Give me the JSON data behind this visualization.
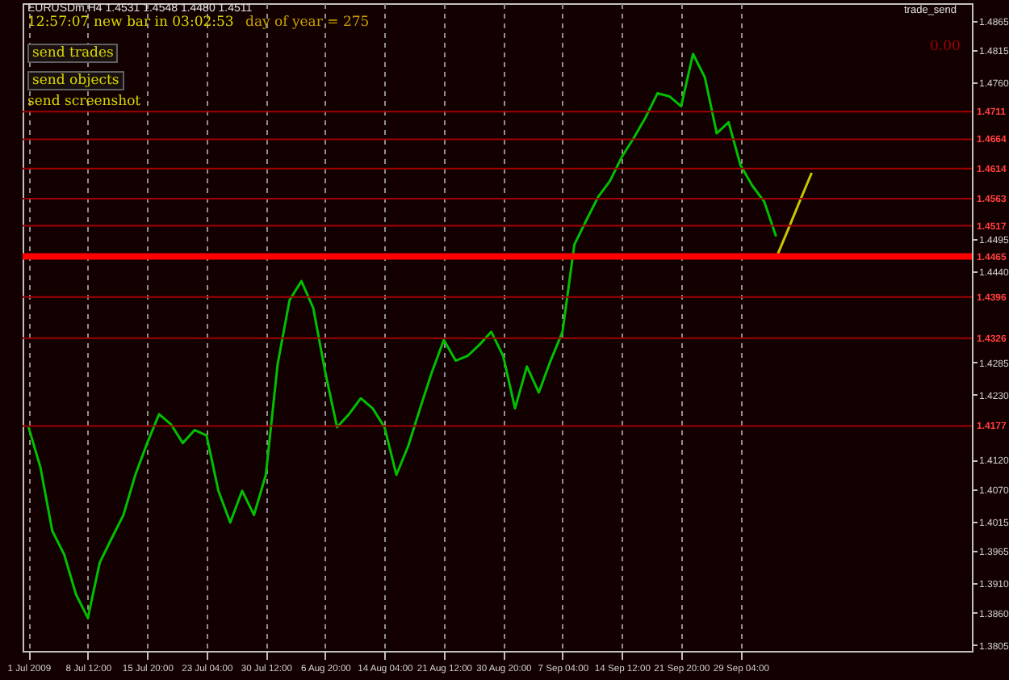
{
  "chart_data": {
    "type": "line",
    "title": "EURUSDm,H4 1.4531 1.4548 1.4480 1.4511",
    "annotations": [
      "12:57:07",
      "new bar in 03:02:53",
      "day of year = 275",
      "send trades",
      "send objects",
      "send screenshot",
      "trade_send",
      "0.00"
    ],
    "categories": [
      "1 Jul 2009",
      null,
      null,
      null,
      null,
      "8 Jul 12:00",
      null,
      null,
      null,
      null,
      "15 Jul 20:00",
      null,
      null,
      null,
      null,
      "23 Jul 04:00",
      null,
      null,
      null,
      null,
      "30 Jul 12:00",
      null,
      null,
      null,
      null,
      "6 Aug 20:00",
      null,
      null,
      null,
      null,
      "14 Aug 04:00",
      null,
      null,
      null,
      null,
      "21 Aug 12:00",
      null,
      null,
      null,
      null,
      "30 Aug 20:00",
      null,
      null,
      null,
      null,
      "7 Sep 04:00",
      null,
      null,
      null,
      null,
      "14 Sep 12:00",
      null,
      null,
      null,
      null,
      "21 Sep 20:00",
      null,
      null,
      null,
      null,
      "29 Sep 04:00",
      null,
      null,
      null,
      null,
      null,
      null,
      null,
      null,
      null,
      null,
      null,
      null,
      null,
      null,
      null,
      null,
      null,
      null,
      null
    ],
    "ylim": [
      1.3795,
      1.4895
    ],
    "yticks": [
      1.4865,
      1.4815,
      {
        "value": 1.476,
        "label": "1.4760"
      },
      1.4495,
      {
        "value": 1.444,
        "label": "1.4440"
      },
      1.4285,
      {
        "value": 1.423,
        "label": "1.4230"
      },
      {
        "value": 1.412,
        "label": "1.4120"
      },
      {
        "value": 1.407,
        "label": "1.4070"
      },
      1.4015,
      1.3965,
      {
        "value": 1.391,
        "label": "1.3910"
      },
      {
        "value": 1.386,
        "label": "1.3860"
      },
      1.3805
    ],
    "grid": "x",
    "series": [
      {
        "color": "#00c000",
        "values": [
          1.4175,
          1.4107,
          1.3999,
          1.3959,
          1.3891,
          1.3851,
          1.3945,
          1.3986,
          1.4026,
          1.4094,
          1.4148,
          1.4197,
          1.418,
          1.4148,
          1.417,
          1.4161,
          1.4067,
          1.4013,
          1.4067,
          1.4026,
          1.4094,
          1.4283,
          1.4391,
          1.4423,
          1.4377,
          1.4269,
          1.4175,
          1.4197,
          1.4224,
          1.4207,
          1.4175,
          1.4094,
          1.4143,
          1.4207,
          1.4269,
          1.4323,
          1.4288,
          1.4296,
          1.4315,
          1.4337,
          1.4296,
          1.4207,
          1.4278,
          1.4234,
          1.4288,
          1.4337,
          1.4485,
          1.4526,
          1.4566,
          1.4593,
          1.4634,
          1.4666,
          1.4701,
          1.4742,
          1.4737,
          1.472,
          1.4809,
          1.4769,
          1.4674,
          1.4693,
          1.462,
          1.4585,
          1.4558,
          1.4499,
          null,
          null,
          null,
          null,
          null,
          null,
          null,
          null,
          null,
          null,
          null,
          null,
          null,
          null,
          null,
          null
        ]
      },
      {
        "type": "line",
        "color": "#c8c800",
        "values": [
          null,
          null,
          null,
          null,
          null,
          null,
          null,
          null,
          null,
          null,
          null,
          null,
          null,
          null,
          null,
          null,
          null,
          null,
          null,
          null,
          null,
          null,
          null,
          null,
          null,
          null,
          null,
          null,
          null,
          null,
          null,
          null,
          null,
          null,
          null,
          null,
          null,
          null,
          null,
          null,
          null,
          null,
          null,
          null,
          null,
          null,
          null,
          null,
          null,
          null,
          null,
          null,
          null,
          null,
          null,
          null,
          null,
          null,
          null,
          null,
          null,
          null,
          null,
          1.4462,
          1.451,
          1.4559,
          1.4607,
          null,
          null,
          null,
          null,
          null,
          null,
          null,
          null,
          null,
          null,
          null,
          null,
          null
        ]
      }
    ],
    "ref_lines": [
      {
        "axis": "y",
        "value": 1.4711,
        "label": "1.4711",
        "color": "#a00000"
      },
      {
        "axis": "y",
        "value": 1.4664,
        "label": "1.4664",
        "color": "#a00000"
      },
      {
        "axis": "y",
        "value": 1.4614,
        "label": "1.4614",
        "color": "#a00000"
      },
      {
        "axis": "y",
        "value": 1.4563,
        "label": "1.4563",
        "color": "#a00000"
      },
      {
        "axis": "y",
        "value": 1.4517,
        "label": "1.4517",
        "color": "#a00000"
      },
      {
        "axis": "y",
        "value": 1.4465,
        "label": "1.4465",
        "color": "#ff0000"
      },
      {
        "axis": "y",
        "value": 1.4396,
        "label": "1.4396",
        "color": "#a00000"
      },
      {
        "axis": "y",
        "value": 1.4326,
        "label": "1.4326",
        "color": "#a00000"
      },
      {
        "axis": "y",
        "value": 1.4177,
        "label": "1.4177",
        "color": "#a00000"
      }
    ]
  }
}
